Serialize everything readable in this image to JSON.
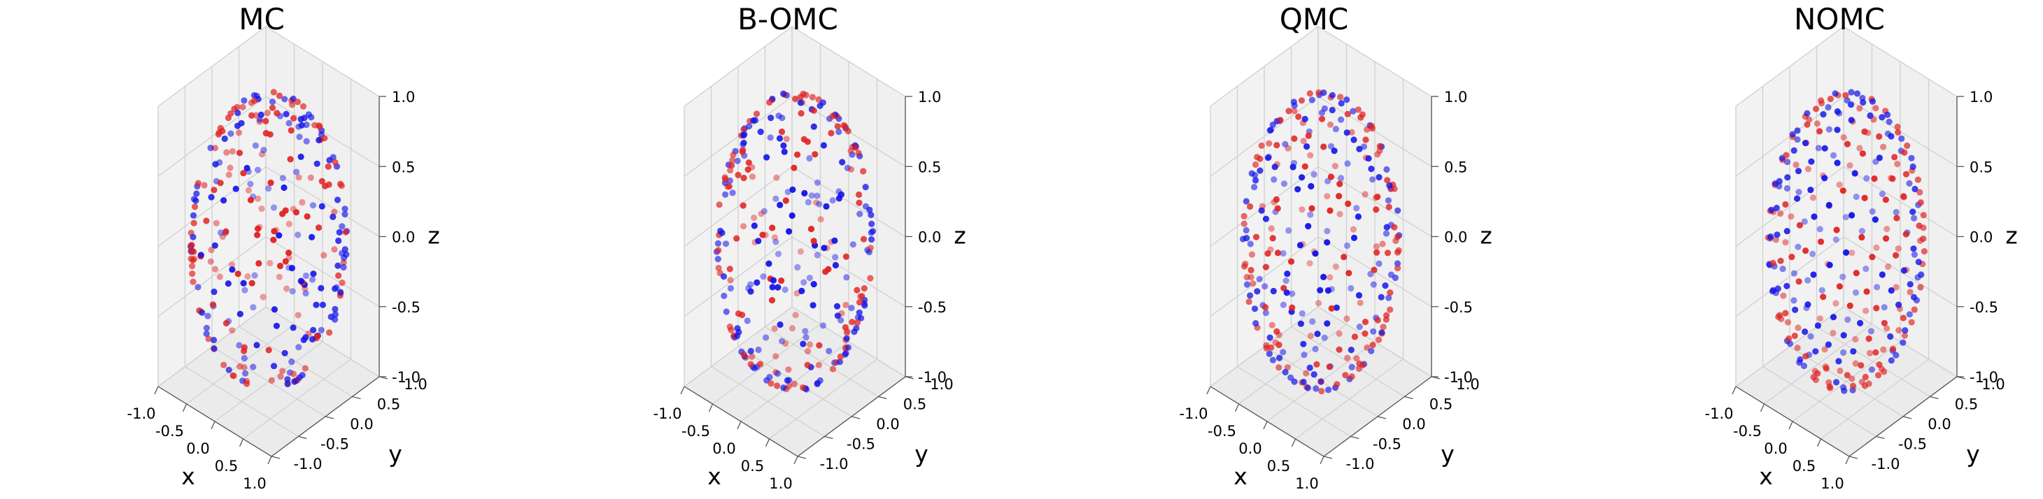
{
  "chart_data": [
    {
      "type": "scatter",
      "projection": "3d",
      "title": "MC",
      "xlabel": "x",
      "ylabel": "y",
      "zlabel": "z",
      "xlim": [
        -1.0,
        1.0
      ],
      "ylim": [
        -1.0,
        1.0
      ],
      "zlim": [
        -1.0,
        1.0
      ],
      "xticks": [
        "-1.0",
        "-0.5",
        "0.0",
        "0.5",
        "1.0"
      ],
      "yticks": [
        "-1.0",
        "-0.5",
        "0.0",
        "0.5",
        "1.0"
      ],
      "zticks": [
        "-1.0",
        "-0.5",
        "0.0",
        "0.5",
        "1.0"
      ],
      "grid": true,
      "points": "approximately 300 points on the unit sphere, irregular random spacing (visible clumps and gaps)",
      "point_count": 300,
      "seed": 11,
      "spacing": "random",
      "colors": [
        "#1010e8",
        "#e02020"
      ]
    },
    {
      "type": "scatter",
      "projection": "3d",
      "title": "B-OMC",
      "xlabel": "x",
      "ylabel": "y",
      "zlabel": "z",
      "xlim": [
        -1.0,
        1.0
      ],
      "ylim": [
        -1.0,
        1.0
      ],
      "zlim": [
        -1.0,
        1.0
      ],
      "xticks": [
        "-1.0",
        "-0.5",
        "0.0",
        "0.5",
        "1.0"
      ],
      "yticks": [
        "-1.0",
        "-0.5",
        "0.0",
        "0.5",
        "1.0"
      ],
      "zticks": [
        "-1.0",
        "-0.5",
        "0.0",
        "0.5",
        "1.0"
      ],
      "grid": true,
      "points": "approximately 300 points on the unit sphere in antithetic (opposite) pairs",
      "point_count": 300,
      "seed": 23,
      "spacing": "antithetic",
      "colors": [
        "#1010e8",
        "#e02020"
      ]
    },
    {
      "type": "scatter",
      "projection": "3d",
      "title": "QMC",
      "xlabel": "x",
      "ylabel": "y",
      "zlabel": "z",
      "xlim": [
        -1.0,
        1.0
      ],
      "ylim": [
        -1.0,
        1.0
      ],
      "zlim": [
        -1.0,
        1.0
      ],
      "xticks": [
        "-1.0",
        "-0.5",
        "0.0",
        "0.5",
        "1.0"
      ],
      "yticks": [
        "-1.0",
        "-0.5",
        "0.0",
        "0.5",
        "1.0"
      ],
      "zticks": [
        "-1.0",
        "-0.5",
        "0.0",
        "0.5",
        "1.0"
      ],
      "grid": true,
      "points": "approximately 300 points on the unit sphere, low-discrepancy quasi-random spacing",
      "point_count": 300,
      "seed": 37,
      "spacing": "quasi",
      "colors": [
        "#1010e8",
        "#e02020"
      ]
    },
    {
      "type": "scatter",
      "projection": "3d",
      "title": "NOMC",
      "xlabel": "x",
      "ylabel": "y",
      "zlabel": "z",
      "xlim": [
        -1.0,
        1.0
      ],
      "ylim": [
        -1.0,
        1.0
      ],
      "zlim": [
        -1.0,
        1.0
      ],
      "xticks": [
        "-1.0",
        "-0.5",
        "0.0",
        "0.5",
        "1.0"
      ],
      "yticks": [
        "-1.0",
        "-0.5",
        "0.0",
        "0.5",
        "1.0"
      ],
      "zticks": [
        "-1.0",
        "-0.5",
        "0.0",
        "0.5",
        "1.0"
      ],
      "grid": true,
      "points": "approximately 300 points on the unit sphere, near-uniform (evenly spread) spacing",
      "point_count": 300,
      "seed": 41,
      "spacing": "uniform",
      "colors": [
        "#1010e8",
        "#e02020"
      ]
    }
  ]
}
